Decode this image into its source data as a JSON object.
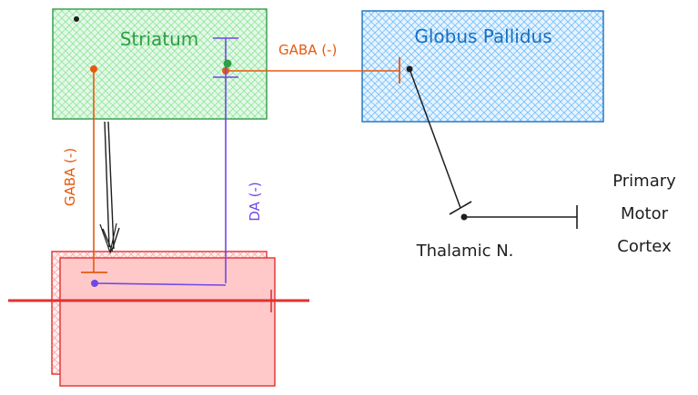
{
  "diagram": {
    "nodes": {
      "striatum": {
        "label": "Striatum",
        "color": "#2f9e44",
        "fill": "#b2f2bb"
      },
      "globus_pallidus": {
        "label": "Globus Pallidus",
        "color": "#1971c2",
        "fill": "#a5d8ff"
      },
      "thalamic": {
        "label": "Thalamic N."
      },
      "motor_cortex": {
        "lines": [
          "Primary",
          "Motor",
          "Cortex"
        ]
      },
      "bottom_box": {
        "label": "",
        "color": "#e03131",
        "fill": "#ffc9c9"
      }
    },
    "edges": {
      "gaba_to_gp": {
        "label": "GABA (-)",
        "color": "#e8590c"
      },
      "gaba_down": {
        "label": "GABA (-)",
        "color": "#e8590c"
      },
      "da": {
        "label": "DA (-)",
        "color": "#7048e8"
      },
      "gp_to_thalamus": {
        "label": "",
        "color": "#1e1e1e"
      },
      "thalamus_to_cortex": {
        "label": "",
        "color": "#1e1e1e"
      },
      "striatum_down_arrow": {
        "label": "",
        "color": "#1e1e1e"
      },
      "red_bar": {
        "label": "",
        "color": "#e03131"
      }
    }
  }
}
